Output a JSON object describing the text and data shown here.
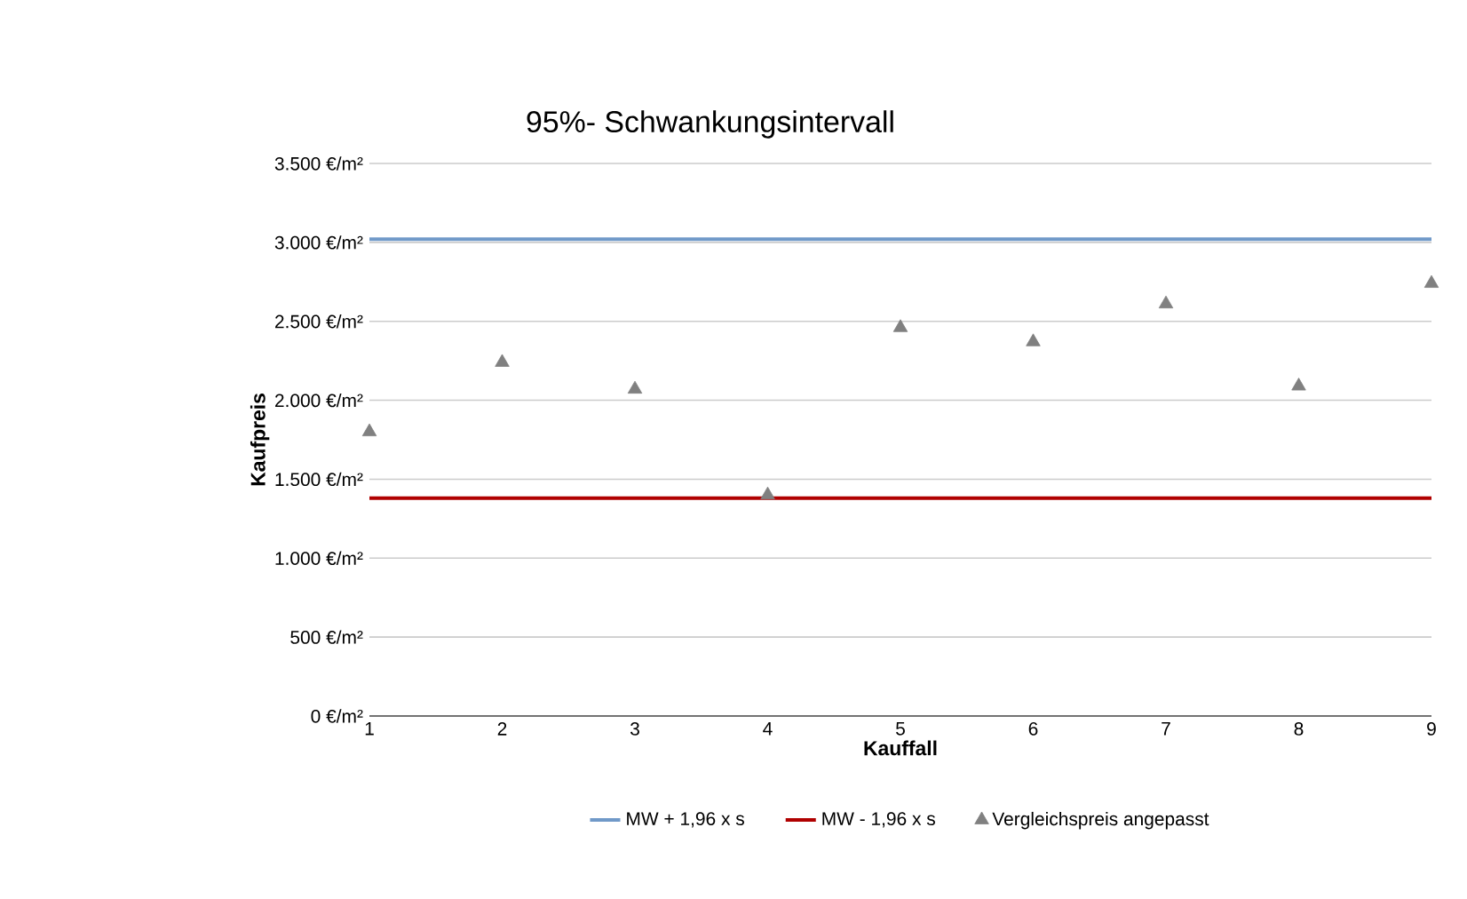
{
  "chart_data": {
    "type": "scatter",
    "title": "95%- Schwankungsintervall",
    "xlabel": "Kauffall",
    "ylabel": "Kaufpreis",
    "xlim": [
      1,
      9
    ],
    "xticks": [
      1,
      2,
      3,
      4,
      5,
      6,
      7,
      8,
      9
    ],
    "ylim": [
      0,
      3500
    ],
    "yticks": [
      {
        "value": 0,
        "label": "0 €/m²"
      },
      {
        "value": 500,
        "label": "500 €/m²"
      },
      {
        "value": 1000,
        "label": "1.000 €/m²"
      },
      {
        "value": 1500,
        "label": "1.500 €/m²"
      },
      {
        "value": 2000,
        "label": "2.000 €/m²"
      },
      {
        "value": 2500,
        "label": "2.500 €/m²"
      },
      {
        "value": 3000,
        "label": "3.000 €/m²"
      },
      {
        "value": 3500,
        "label": "3.500 €/m²"
      }
    ],
    "grid": "y",
    "legend": "bottom",
    "series": [
      {
        "name": "MW + 1,96 x s",
        "type": "line",
        "color": "#7099c8",
        "x": [
          1,
          9
        ],
        "values": [
          3020,
          3020
        ]
      },
      {
        "name": "MW - 1,96 x s",
        "type": "line",
        "color": "#b00000",
        "x": [
          1,
          9
        ],
        "values": [
          1380,
          1380
        ]
      },
      {
        "name": "Vergleichspreis angepasst",
        "marker": "triangle",
        "color": "#808080",
        "x": [
          1,
          2,
          3,
          4,
          5,
          6,
          7,
          8,
          9
        ],
        "values": [
          1800,
          2240,
          2070,
          1400,
          2460,
          2370,
          2610,
          2090,
          2740
        ]
      }
    ]
  }
}
